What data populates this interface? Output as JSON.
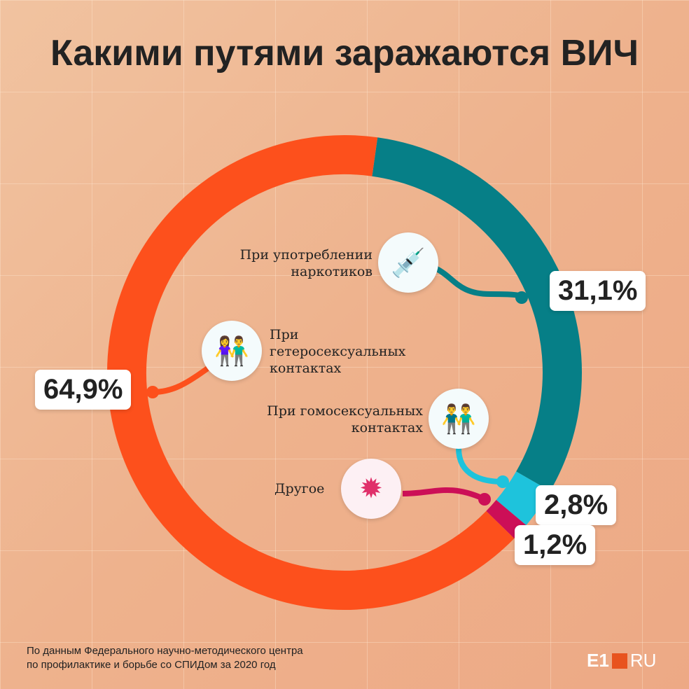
{
  "chart_data": {
    "type": "pie",
    "title": "Какими путями заражаются ВИЧ",
    "donut": true,
    "series": [
      {
        "name": "При употреблении наркотиков",
        "value": 31.1,
        "label": "31,1%",
        "color": "#067f87"
      },
      {
        "name": "При гомосексуальных контактах",
        "value": 2.8,
        "label": "2,8%",
        "color": "#1ec3dc"
      },
      {
        "name": "Другое",
        "value": 1.2,
        "label": "1,2%",
        "color": "#cc0f57"
      },
      {
        "name": "При гетеросексуальных контактах",
        "value": 64.9,
        "label": "64,9%",
        "color": "#fd501c"
      }
    ]
  },
  "labels": {
    "drugs": [
      "При употреблении",
      "наркотиков"
    ],
    "hetero": [
      "При",
      "гетеросексуальных",
      "контактах"
    ],
    "homo": [
      "При гомосексуальных",
      "контактах"
    ],
    "other": "Другое"
  },
  "source": [
    "По данным Федерального научно-методического центра",
    "по профилактике и борьбе со СПИДом за 2020 год"
  ],
  "logo": {
    "main": "E1",
    "suffix": "RU"
  }
}
